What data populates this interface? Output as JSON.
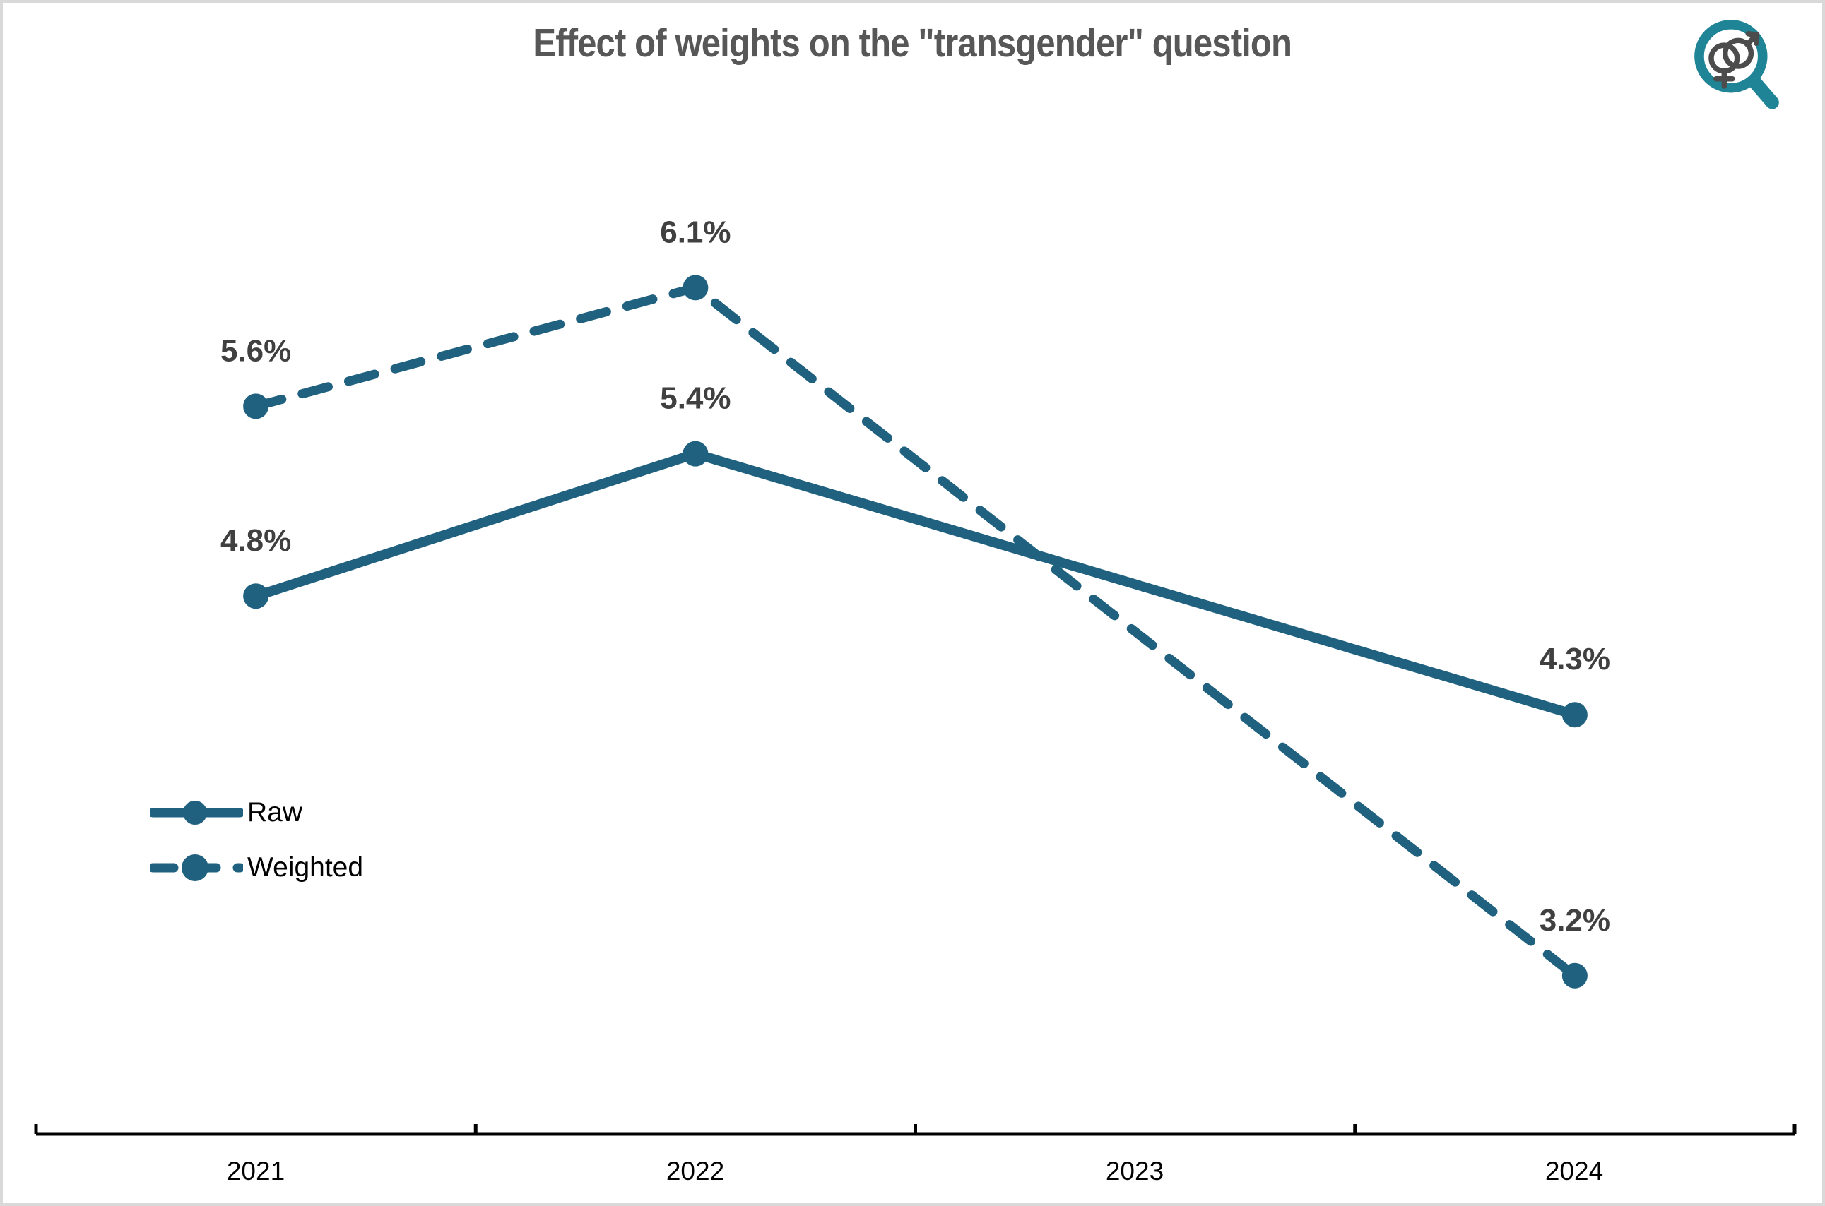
{
  "title": "Effect of weights on the \"transgender\" question",
  "colors": {
    "line": "#1F617F",
    "data_label": "#404040",
    "title": "#575757",
    "axis": "#000000",
    "frame_border": "#D9D9D9",
    "logo_teal": "#1F8495",
    "logo_symbols": "#4C4C4C"
  },
  "logo": {
    "description": "magnifying glass over interlocked male and female gender symbols"
  },
  "chart_data": {
    "type": "line",
    "title": "Effect of weights on the \"transgender\" question",
    "categories": [
      "2021",
      "2022",
      "2023",
      "2024"
    ],
    "series": [
      {
        "name": "Raw",
        "style": "solid",
        "values": [
          4.8,
          5.4,
          null,
          4.3
        ],
        "labels": [
          "4.8%",
          "5.4%",
          null,
          "4.3%"
        ]
      },
      {
        "name": "Weighted",
        "style": "dashed",
        "values": [
          5.6,
          6.1,
          null,
          3.2
        ],
        "labels": [
          "5.6%",
          "6.1%",
          null,
          "3.2%"
        ]
      }
    ],
    "xlabel": "",
    "ylabel": "",
    "y_axis_shown": false,
    "grid": "off",
    "ylim_implied": [
      2.5,
      6.7
    ],
    "legend_position": "middle-left",
    "legend": [
      "Raw",
      "Weighted"
    ],
    "notes": "no data point plotted for 2023; lines connect 2022 directly to 2024 and cross between 2022 and 2023"
  }
}
